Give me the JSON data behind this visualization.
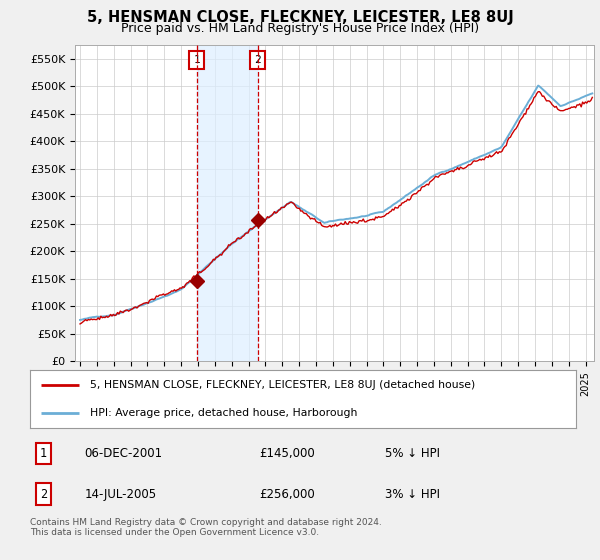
{
  "title": "5, HENSMAN CLOSE, FLECKNEY, LEICESTER, LE8 8UJ",
  "subtitle": "Price paid vs. HM Land Registry's House Price Index (HPI)",
  "ylabel_ticks": [
    "£0",
    "£50K",
    "£100K",
    "£150K",
    "£200K",
    "£250K",
    "£300K",
    "£350K",
    "£400K",
    "£450K",
    "£500K",
    "£550K"
  ],
  "ytick_vals": [
    0,
    50000,
    100000,
    150000,
    200000,
    250000,
    300000,
    350000,
    400000,
    450000,
    500000,
    550000
  ],
  "ylim": [
    0,
    575000
  ],
  "xlim_start": 1994.7,
  "xlim_end": 2025.5,
  "xticks": [
    1995,
    1996,
    1997,
    1998,
    1999,
    2000,
    2001,
    2002,
    2003,
    2004,
    2005,
    2006,
    2007,
    2008,
    2009,
    2010,
    2011,
    2012,
    2013,
    2014,
    2015,
    2016,
    2017,
    2018,
    2019,
    2020,
    2021,
    2022,
    2023,
    2024,
    2025
  ],
  "sale1_date": 2001.92,
  "sale1_price": 145000,
  "sale1_label": "1",
  "sale2_date": 2005.54,
  "sale2_price": 256000,
  "sale2_label": "2",
  "hpi_color": "#6baed6",
  "price_color": "#cc0000",
  "sale_marker_color": "#990000",
  "vline_color": "#cc0000",
  "shade_color": "#ddeeff",
  "bg_color": "#f0f0f0",
  "plot_bg": "#ffffff",
  "grid_color": "#cccccc",
  "legend_line1": "5, HENSMAN CLOSE, FLECKNEY, LEICESTER, LE8 8UJ (detached house)",
  "legend_line2": "HPI: Average price, detached house, Harborough",
  "table_row1": [
    "1",
    "06-DEC-2001",
    "£145,000",
    "5% ↓ HPI"
  ],
  "table_row2": [
    "2",
    "14-JUL-2005",
    "£256,000",
    "3% ↓ HPI"
  ],
  "footnote": "Contains HM Land Registry data © Crown copyright and database right 2024.\nThis data is licensed under the Open Government Licence v3.0.",
  "title_fontsize": 10.5,
  "subtitle_fontsize": 9
}
